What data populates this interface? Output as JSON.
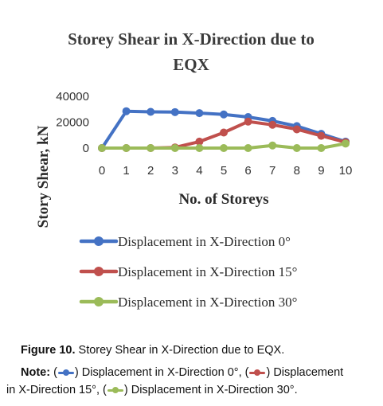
{
  "chart_data": {
    "type": "line",
    "title_line1": "Storey Shear in X-Direction due to",
    "title_line2": "EQX",
    "xlabel": "No. of Storeys",
    "ylabel": "Story Shear, kN",
    "x": [
      0,
      1,
      2,
      3,
      4,
      5,
      6,
      7,
      8,
      9,
      10
    ],
    "x_ticks": [
      "0",
      "1",
      "2",
      "3",
      "4",
      "5",
      "6",
      "7",
      "8",
      "9",
      "10"
    ],
    "y_ticks": [
      "0",
      "20000",
      "40000"
    ],
    "ylim": [
      0,
      40000
    ],
    "grid": false,
    "legend_position": "bottom",
    "series": [
      {
        "name": "Displacement in X-Direction 0°",
        "color": "#4472c4",
        "values": [
          0,
          28500,
          28000,
          27800,
          27000,
          26000,
          24000,
          21000,
          17000,
          11000,
          5000
        ]
      },
      {
        "name": "Displacement in X-Direction 15°",
        "color": "#c0504d",
        "values": [
          0,
          0,
          0,
          500,
          5000,
          12000,
          20500,
          18000,
          14500,
          9500,
          4500
        ]
      },
      {
        "name": "Displacement in X-Direction 30°",
        "color": "#9bbb59",
        "values": [
          0,
          0,
          0,
          0,
          0,
          0,
          0,
          2000,
          0,
          0,
          3500
        ]
      }
    ]
  },
  "caption": {
    "figure_label": "Figure 10.",
    "figure_text": " Storey Shear in X-Direction due to EQX.",
    "note_label": "Note:",
    "note_parts": [
      " (",
      ") Displacement in X-Direction 0°, (",
      ") Displacement",
      "in X-Direction 15°, (",
      ") Displacement in X-Direction 30°."
    ]
  }
}
